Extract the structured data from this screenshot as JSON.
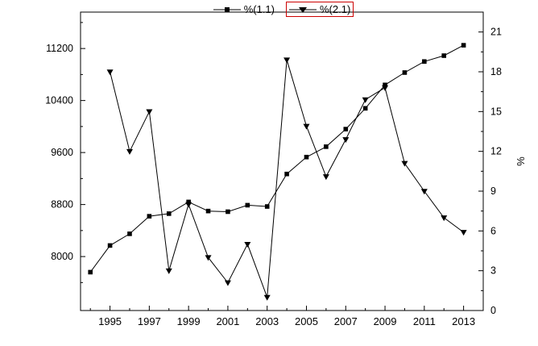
{
  "legend": {
    "series1_label": "%(1.1)",
    "series2_label": "%(2.1)"
  },
  "chart_data": {
    "type": "line",
    "title": "",
    "background": "#ffffff",
    "line_color": "#000000",
    "selection_box_color": "#cc0000",
    "legend_position": "top-center",
    "x_axis": {
      "xlim": [
        1993.5,
        2014
      ],
      "ticks": [
        1995,
        1997,
        1999,
        2001,
        2003,
        2005,
        2007,
        2009,
        2011,
        2013
      ],
      "minor_ticks": [
        1994,
        1996,
        1998,
        2000,
        2002,
        2004,
        2006,
        2008,
        2010,
        2012
      ],
      "label": ""
    },
    "left_axis": {
      "ylim": [
        7170,
        11760
      ],
      "ticks": [
        8000,
        8800,
        9600,
        10400,
        11200
      ],
      "minor_ticks": [
        7600,
        8400,
        9200,
        10000,
        10800,
        11600
      ],
      "label": ""
    },
    "right_axis": {
      "ylim": [
        0,
        22.5
      ],
      "ticks": [
        0,
        3,
        6,
        9,
        12,
        15,
        18,
        21
      ],
      "minor_ticks": [
        1.5,
        4.5,
        7.5,
        10.5,
        13.5,
        16.5,
        19.5
      ],
      "label": "%"
    },
    "series": [
      {
        "name": "%(1.1)",
        "marker": "square",
        "axis": "left",
        "selected": false,
        "x": [
          1994,
          1995,
          1996,
          1997,
          1998,
          1999,
          2000,
          2001,
          2002,
          2003,
          2004,
          2005,
          2006,
          2007,
          2008,
          2009,
          2010,
          2011,
          2012,
          2013
        ],
        "values": [
          7760,
          8170,
          8350,
          8620,
          8660,
          8840,
          8700,
          8690,
          8790,
          8770,
          9270,
          9530,
          9690,
          9960,
          10280,
          10640,
          10830,
          11000,
          11090,
          11250
        ]
      },
      {
        "name": "%(2.1)",
        "marker": "triangle-down",
        "axis": "right",
        "selected": true,
        "x": [
          1995,
          1996,
          1997,
          1998,
          1999,
          2000,
          2001,
          2002,
          2003,
          2004,
          2005,
          2006,
          2007,
          2008,
          2009,
          2010,
          2011,
          2012,
          2013
        ],
        "values": [
          18,
          12,
          15,
          3.0,
          8.0,
          4.0,
          2.1,
          5.0,
          1.0,
          18.9,
          13.9,
          10.1,
          12.9,
          15.9,
          16.8,
          11.1,
          9.0,
          7.0,
          5.9
        ]
      }
    ]
  }
}
